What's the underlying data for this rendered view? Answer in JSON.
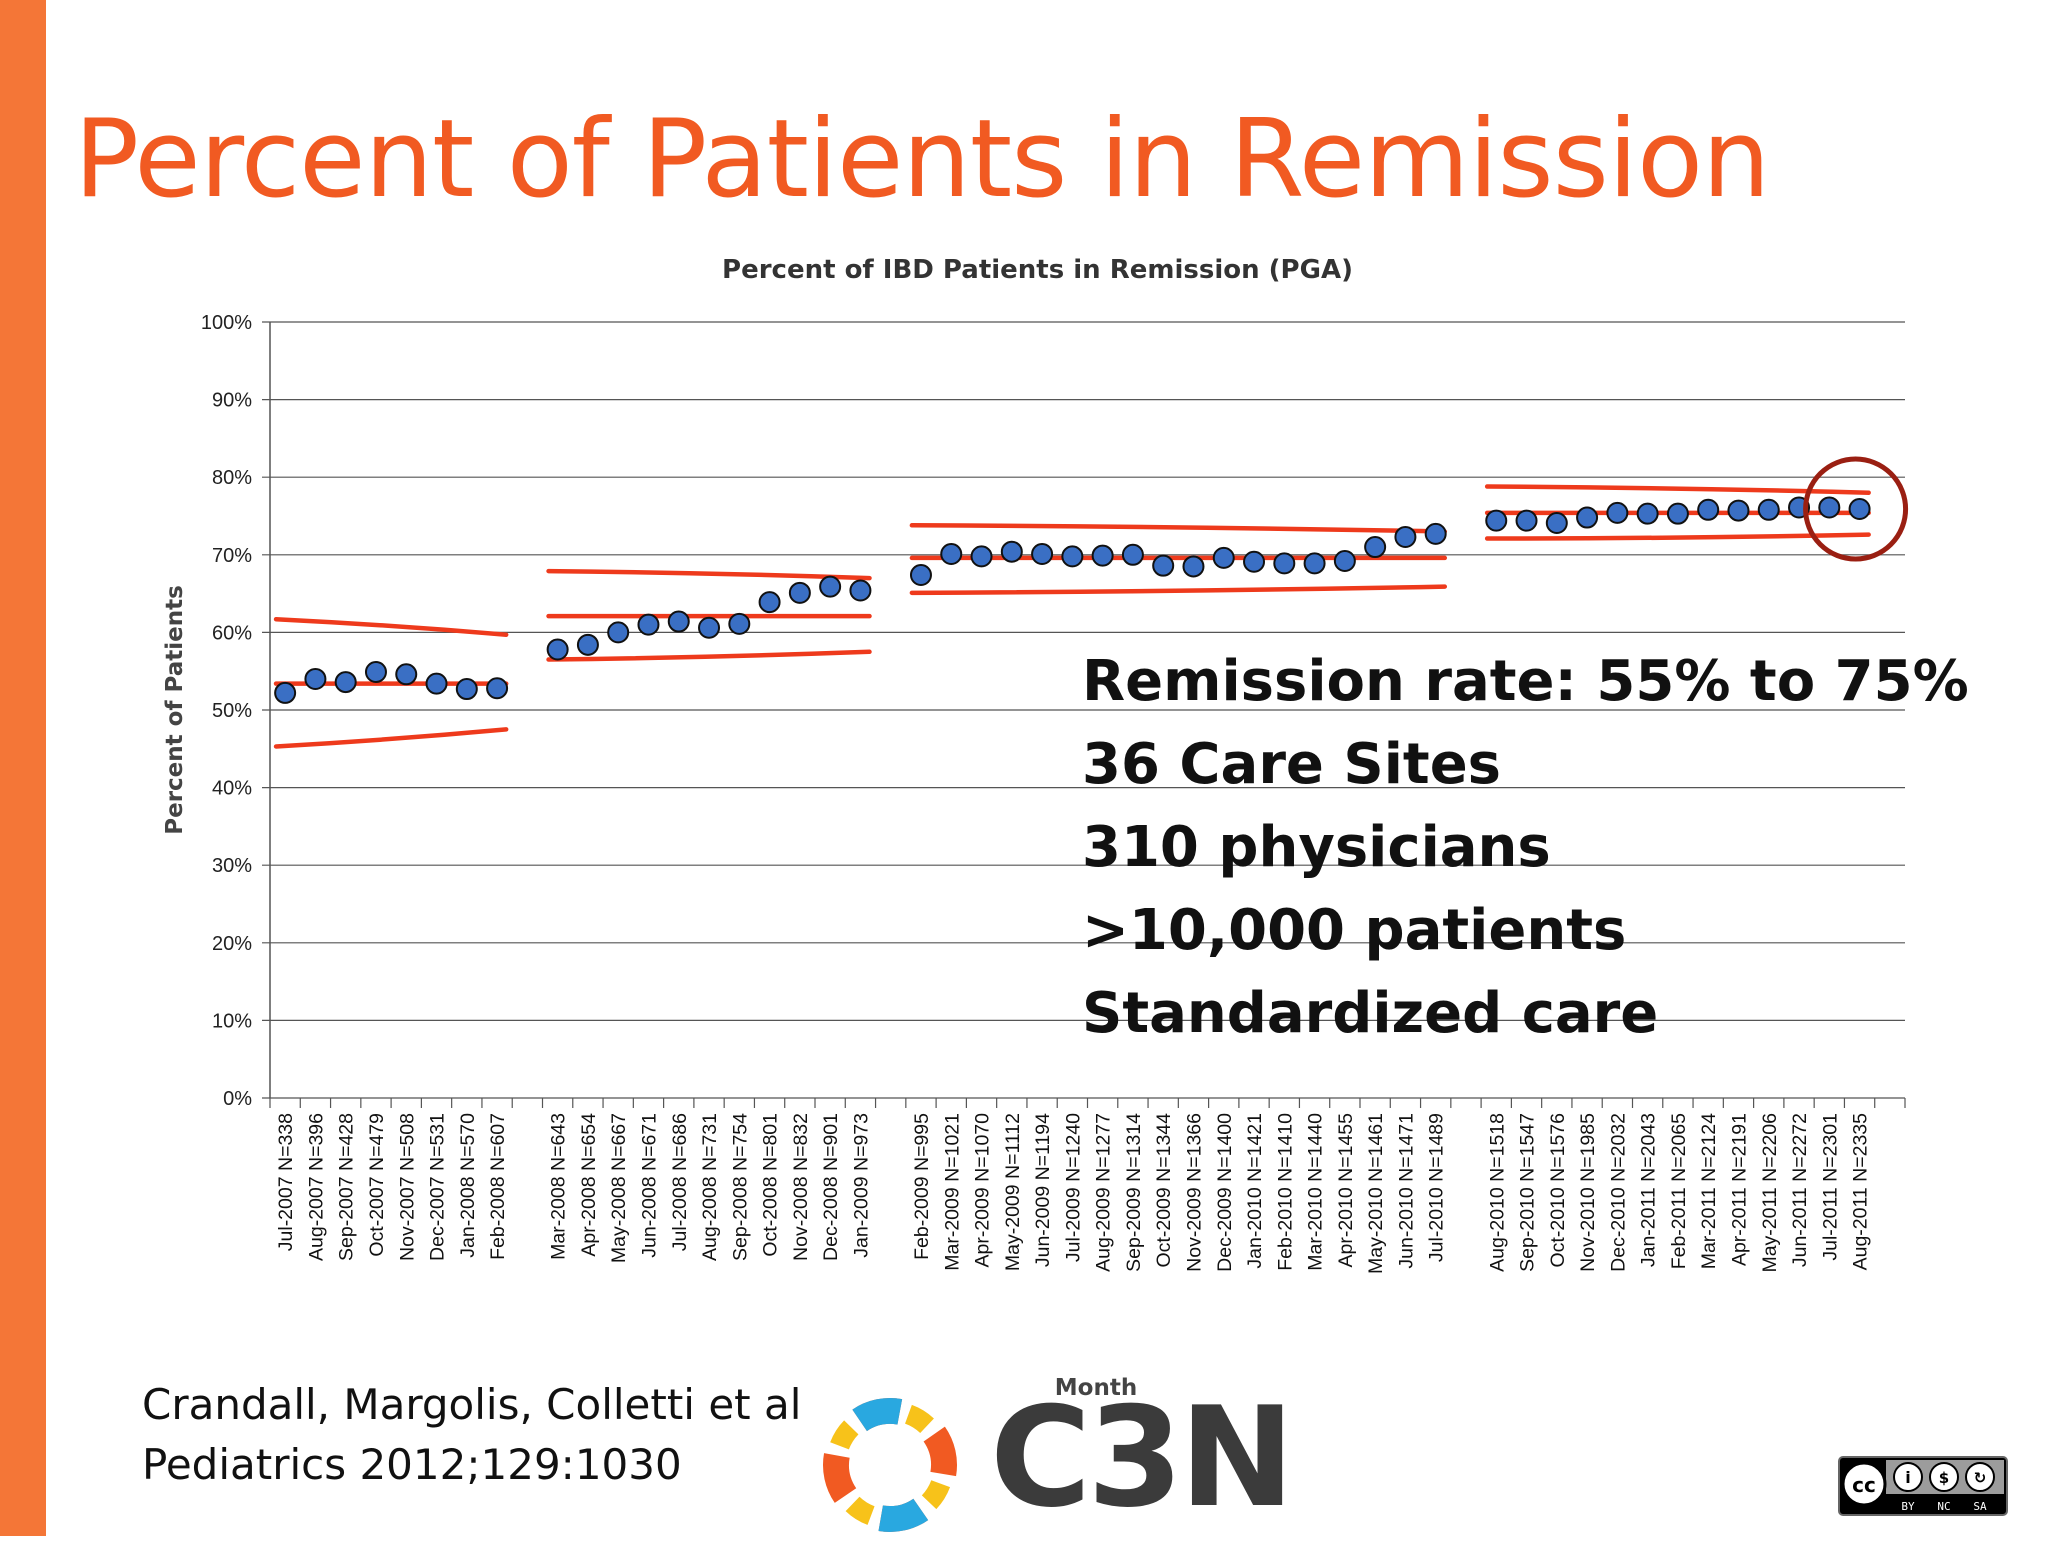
{
  "slide": {
    "title": "Percent of Patients in Remission",
    "stats": [
      "Remission rate:  55% to 75%",
      "36 Care Sites",
      "310 physicians",
      ">10,000 patients",
      "Standardized care"
    ],
    "citation": [
      "Crandall, Margolis, Colletti et al",
      "Pediatrics 2012;129:1030"
    ],
    "logo_text": "C3N",
    "license_badge": [
      "BY",
      "NC",
      "SA"
    ],
    "colors": {
      "accent": "#f47637",
      "title": "#f15a22",
      "point": "#3a6fc4",
      "control_line": "#ee3a1c",
      "highlight_circle": "#9a1f12"
    }
  },
  "chart_data": {
    "type": "scatter",
    "title": "Percent of IBD Patients in Remission (PGA)",
    "xlabel": "Month",
    "ylabel": "Percent of Patients",
    "ylim": [
      0,
      100
    ],
    "yticks": [
      "0%",
      "10%",
      "20%",
      "30%",
      "40%",
      "50%",
      "60%",
      "70%",
      "80%",
      "90%",
      "100%"
    ],
    "grid": true,
    "categories": [
      "Jul-2007 N=338",
      "Aug-2007 N=396",
      "Sep-2007 N=428",
      "Oct-2007 N=479",
      "Nov-2007 N=508",
      "Dec-2007 N=531",
      "Jan-2008 N=570",
      "Feb-2008 N=607",
      "",
      "Mar-2008 N=643",
      "Apr-2008 N=654",
      "May-2008 N=667",
      "Jun-2008 N=671",
      "Jul-2008 N=686",
      "Aug-2008 N=731",
      "Sep-2008 N=754",
      "Oct-2008 N=801",
      "Nov-2008 N=832",
      "Dec-2008 N=901",
      "Jan-2009 N=973",
      "",
      "Feb-2009 N=995",
      "Mar-2009 N=1021",
      "Apr-2009 N=1070",
      "May-2009 N=1112",
      "Jun-2009 N=1194",
      "Jul-2009 N=1240",
      "Aug-2009 N=1277",
      "Sep-2009 N=1314",
      "Oct-2009 N=1344",
      "Nov-2009 N=1366",
      "Dec-2009 N=1400",
      "Jan-2010 N=1421",
      "Feb-2010 N=1410",
      "Mar-2010 N=1440",
      "Apr-2010 N=1455",
      "May-2010 N=1461",
      "Jun-2010 N=1471",
      "Jul-2010 N=1489",
      "",
      "Aug-2010 N=1518",
      "Sep-2010 N=1547",
      "Oct-2010 N=1576",
      "Nov-2010 N=1985",
      "Dec-2010 N=2032",
      "Jan-2011 N=2043",
      "Feb-2011 N=2065",
      "Mar-2011 N=2124",
      "Apr-2011 N=2191",
      "May-2011 N=2206",
      "Jun-2011 N=2272",
      "Jul-2011 N=2301",
      "Aug-2011 N=2335",
      ""
    ],
    "values": [
      52.2,
      54.0,
      53.6,
      54.9,
      54.6,
      53.4,
      52.7,
      52.8,
      null,
      57.8,
      58.4,
      60.0,
      61.0,
      61.4,
      60.6,
      61.1,
      63.9,
      65.1,
      65.9,
      65.4,
      null,
      67.4,
      70.1,
      69.8,
      70.4,
      70.1,
      69.8,
      69.9,
      70.0,
      68.6,
      68.5,
      69.6,
      69.1,
      68.9,
      68.9,
      69.2,
      71.0,
      72.3,
      72.7,
      null,
      74.4,
      74.4,
      74.1,
      74.8,
      75.4,
      75.3,
      75.3,
      75.8,
      75.7,
      75.8,
      76.1,
      76.1,
      75.9,
      null
    ],
    "control_limits": [
      {
        "from": "Jul-2007 N=338",
        "to": "Feb-2008 N=607",
        "center": [
          53.4,
          53.4
        ],
        "upper": [
          61.7,
          59.7
        ],
        "lower": [
          45.3,
          47.5
        ]
      },
      {
        "from": "Mar-2008 N=643",
        "to": "Jan-2009 N=973",
        "center": [
          62.1,
          62.1
        ],
        "upper": [
          67.9,
          67.0
        ],
        "lower": [
          56.5,
          57.5
        ]
      },
      {
        "from": "Feb-2009 N=995",
        "to": "Jul-2010 N=1489",
        "center": [
          69.6,
          69.6
        ],
        "upper": [
          73.8,
          73.0
        ],
        "lower": [
          65.1,
          65.9
        ]
      },
      {
        "from": "Aug-2010 N=1518",
        "to": "Aug-2011 N=2335",
        "center": [
          75.4,
          75.4
        ],
        "upper": [
          78.8,
          78.0
        ],
        "lower": [
          72.1,
          72.6
        ]
      }
    ],
    "highlight": "Aug-2011 N=2335"
  }
}
